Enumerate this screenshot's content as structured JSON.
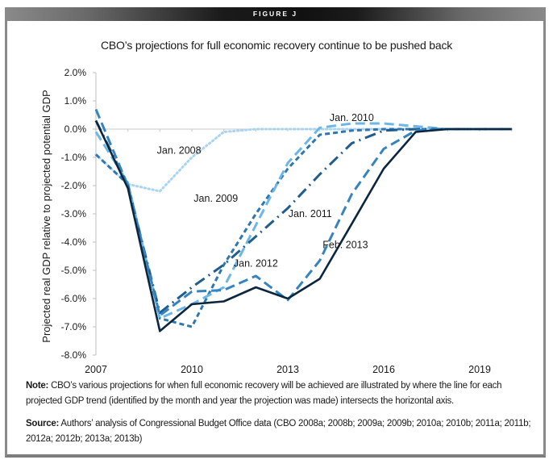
{
  "figure_label": "FIGURE J",
  "chart_data": {
    "type": "line",
    "title": "CBO’s projections for full economic recovery continue to be pushed back",
    "xlabel": "",
    "ylabel": "Projected real GDP relative to projected potential GDP",
    "xlim": [
      2007,
      2020
    ],
    "ylim": [
      -8.0,
      2.0
    ],
    "grid": false,
    "legend": "none (series labeled inline)",
    "x_ticks": [
      2007,
      2010,
      2013,
      2016,
      2019
    ],
    "x_tick_labels": [
      "2007",
      "2010",
      "2013",
      "2016",
      "2019"
    ],
    "y_ticks": [
      2,
      1,
      0,
      -1,
      -2,
      -3,
      -4,
      -5,
      -6,
      -7,
      -8
    ],
    "y_tick_labels": [
      "2.0%",
      "1.0%",
      "0.0%",
      "-1.0%",
      "-2.0%",
      "-3.0%",
      "-4.0%",
      "-5.0%",
      "-6.0%",
      "-7.0%",
      "-8.0%"
    ],
    "x": [
      2007,
      2008,
      2009,
      2010,
      2011,
      2012,
      2013,
      2014,
      2015,
      2016,
      2017,
      2018,
      2019,
      2020
    ],
    "series": [
      {
        "name": "Jan. 2008",
        "color": "#a9d4f2",
        "style": "dotted",
        "values": [
          -0.9,
          -1.95,
          -2.2,
          -1.0,
          -0.1,
          0.0,
          0.0,
          0.0,
          0.0,
          0.0,
          0.0,
          0.0,
          0.0,
          0.0
        ]
      },
      {
        "name": "Jan. 2009",
        "color": "#2f77b0",
        "style": "short-dash",
        "values": [
          -0.9,
          -1.95,
          -6.7,
          -7.0,
          -4.8,
          -3.0,
          -1.4,
          -0.2,
          -0.05,
          0.0,
          0.0,
          0.0,
          0.0,
          0.0
        ]
      },
      {
        "name": "Jan. 2010",
        "color": "#6cb7e8",
        "style": "long-dash",
        "values": [
          -0.1,
          -1.9,
          -6.7,
          -6.2,
          -5.6,
          -3.4,
          -1.2,
          0.05,
          0.2,
          0.2,
          0.1,
          0.0,
          0.0,
          0.0
        ]
      },
      {
        "name": "Jan. 2011",
        "color": "#1f5d8f",
        "style": "dash-dot",
        "values": [
          0.3,
          -2.0,
          -6.5,
          -5.6,
          -4.8,
          -3.8,
          -2.8,
          -1.6,
          -0.5,
          -0.05,
          0.0,
          0.0,
          0.0,
          0.0
        ]
      },
      {
        "name": "Jan. 2012",
        "color": "#3584bf",
        "style": "long-dash",
        "values": [
          0.7,
          -2.0,
          -6.6,
          -5.75,
          -5.7,
          -5.2,
          -6.05,
          -4.65,
          -2.3,
          -0.7,
          -0.05,
          0.0,
          0.0,
          0.0
        ]
      },
      {
        "name": "Feb. 2013",
        "color": "#0b2740",
        "style": "solid",
        "values": [
          0.3,
          -2.1,
          -7.15,
          -6.2,
          -6.1,
          -5.6,
          -6.0,
          -5.3,
          -3.35,
          -1.4,
          -0.1,
          0.0,
          0.0,
          0.0
        ]
      }
    ],
    "annotations": [
      {
        "text": "Jan. 2008",
        "series": "Jan. 2008"
      },
      {
        "text": "Jan. 2009",
        "series": "Jan. 2009"
      },
      {
        "text": "Jan. 2010",
        "series": "Jan. 2010"
      },
      {
        "text": "Jan. 2011",
        "series": "Jan. 2011"
      },
      {
        "text": "Jan. 2012",
        "series": "Jan. 2012"
      },
      {
        "text": "Feb. 2013",
        "series": "Feb. 2013"
      }
    ]
  },
  "note": {
    "label": "Note:",
    "text": " CBO’s various projections for when full economic recovery will be achieved are illustrated by where the line for each projected GDP trend (identified by the month and year the projection was made) intersects the horizontal axis."
  },
  "source": {
    "label": "Source:",
    "text": " Authors’ analysis of Congressional Budget Office data (CBO 2008a; 2008b; 2009a; 2009b; 2010a; 2010b; 2011a; 2011b; 2012a; 2012b; 2013a; 2013b)"
  }
}
